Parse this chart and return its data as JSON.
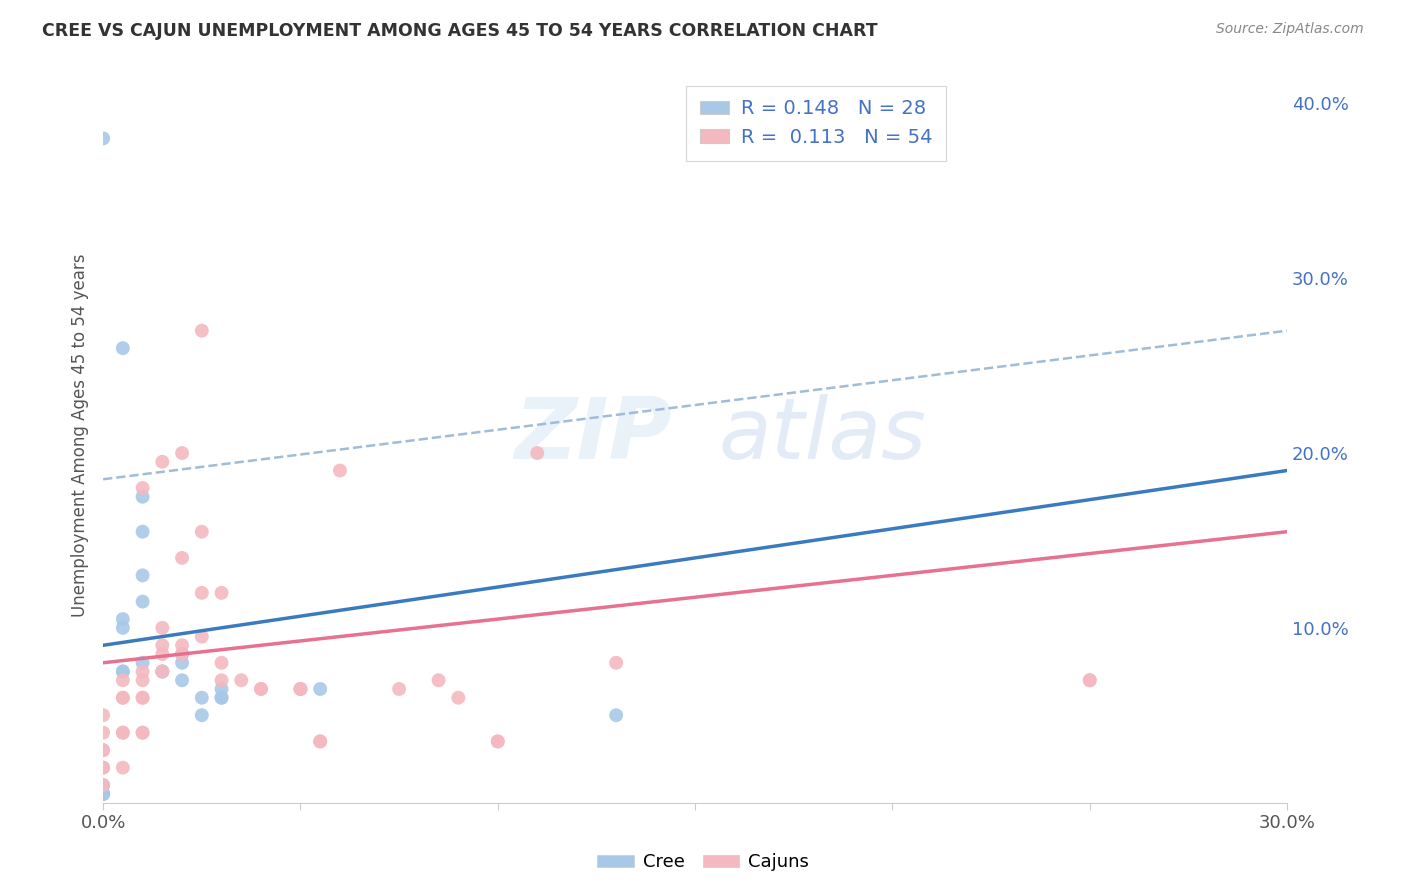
{
  "title": "CREE VS CAJUN UNEMPLOYMENT AMONG AGES 45 TO 54 YEARS CORRELATION CHART",
  "source": "Source: ZipAtlas.com",
  "ylabel": "Unemployment Among Ages 45 to 54 years",
  "xlim": [
    0.0,
    0.3
  ],
  "ylim": [
    0.0,
    0.42
  ],
  "cree_color": "#a8c8e8",
  "cajun_color": "#f4b8c0",
  "cree_line_color": "#3a7abf",
  "cajun_line_color": "#e87090",
  "trend_line_dashed_color": "#a0bcd8",
  "background_color": "#ffffff",
  "watermark_zip": "ZIP",
  "watermark_atlas": "atlas",
  "legend_R_cree": "0.148",
  "legend_N_cree": "28",
  "legend_R_cajun": "0.113",
  "legend_N_cajun": "54",
  "cree_points_x": [
    0.0,
    0.0,
    0.0,
    0.0,
    0.0,
    0.005,
    0.005,
    0.005,
    0.01,
    0.01,
    0.01,
    0.01,
    0.01,
    0.015,
    0.015,
    0.02,
    0.02,
    0.02,
    0.025,
    0.025,
    0.03,
    0.03,
    0.03,
    0.055,
    0.13,
    0.005,
    0.005,
    0.0
  ],
  "cree_points_y": [
    0.01,
    0.005,
    0.005,
    0.005,
    0.005,
    0.105,
    0.1,
    0.26,
    0.175,
    0.155,
    0.13,
    0.115,
    0.08,
    0.075,
    0.075,
    0.07,
    0.08,
    0.085,
    0.05,
    0.06,
    0.06,
    0.06,
    0.065,
    0.065,
    0.05,
    0.075,
    0.075,
    0.38
  ],
  "cajun_points_x": [
    0.0,
    0.0,
    0.0,
    0.0,
    0.0,
    0.0,
    0.0,
    0.005,
    0.005,
    0.005,
    0.005,
    0.005,
    0.005,
    0.01,
    0.01,
    0.01,
    0.01,
    0.01,
    0.01,
    0.01,
    0.015,
    0.015,
    0.015,
    0.015,
    0.015,
    0.02,
    0.02,
    0.02,
    0.02,
    0.025,
    0.025,
    0.025,
    0.025,
    0.03,
    0.03,
    0.03,
    0.035,
    0.04,
    0.04,
    0.05,
    0.05,
    0.05,
    0.055,
    0.055,
    0.06,
    0.075,
    0.085,
    0.09,
    0.1,
    0.1,
    0.11,
    0.13,
    0.25,
    0.25
  ],
  "cajun_points_y": [
    0.01,
    0.02,
    0.02,
    0.03,
    0.03,
    0.04,
    0.05,
    0.02,
    0.04,
    0.04,
    0.06,
    0.06,
    0.07,
    0.04,
    0.04,
    0.06,
    0.06,
    0.07,
    0.075,
    0.18,
    0.075,
    0.085,
    0.09,
    0.1,
    0.195,
    0.085,
    0.09,
    0.14,
    0.2,
    0.095,
    0.12,
    0.155,
    0.27,
    0.07,
    0.08,
    0.12,
    0.07,
    0.065,
    0.065,
    0.065,
    0.065,
    0.065,
    0.035,
    0.035,
    0.19,
    0.065,
    0.07,
    0.06,
    0.035,
    0.035,
    0.2,
    0.08,
    0.07,
    0.07
  ],
  "cree_trendline": [
    [
      0.0,
      0.09
    ],
    [
      0.3,
      0.19
    ]
  ],
  "cajun_trendline": [
    [
      0.0,
      0.08
    ],
    [
      0.3,
      0.155
    ]
  ],
  "dashed_trendline": [
    [
      0.0,
      0.185
    ],
    [
      0.3,
      0.27
    ]
  ]
}
